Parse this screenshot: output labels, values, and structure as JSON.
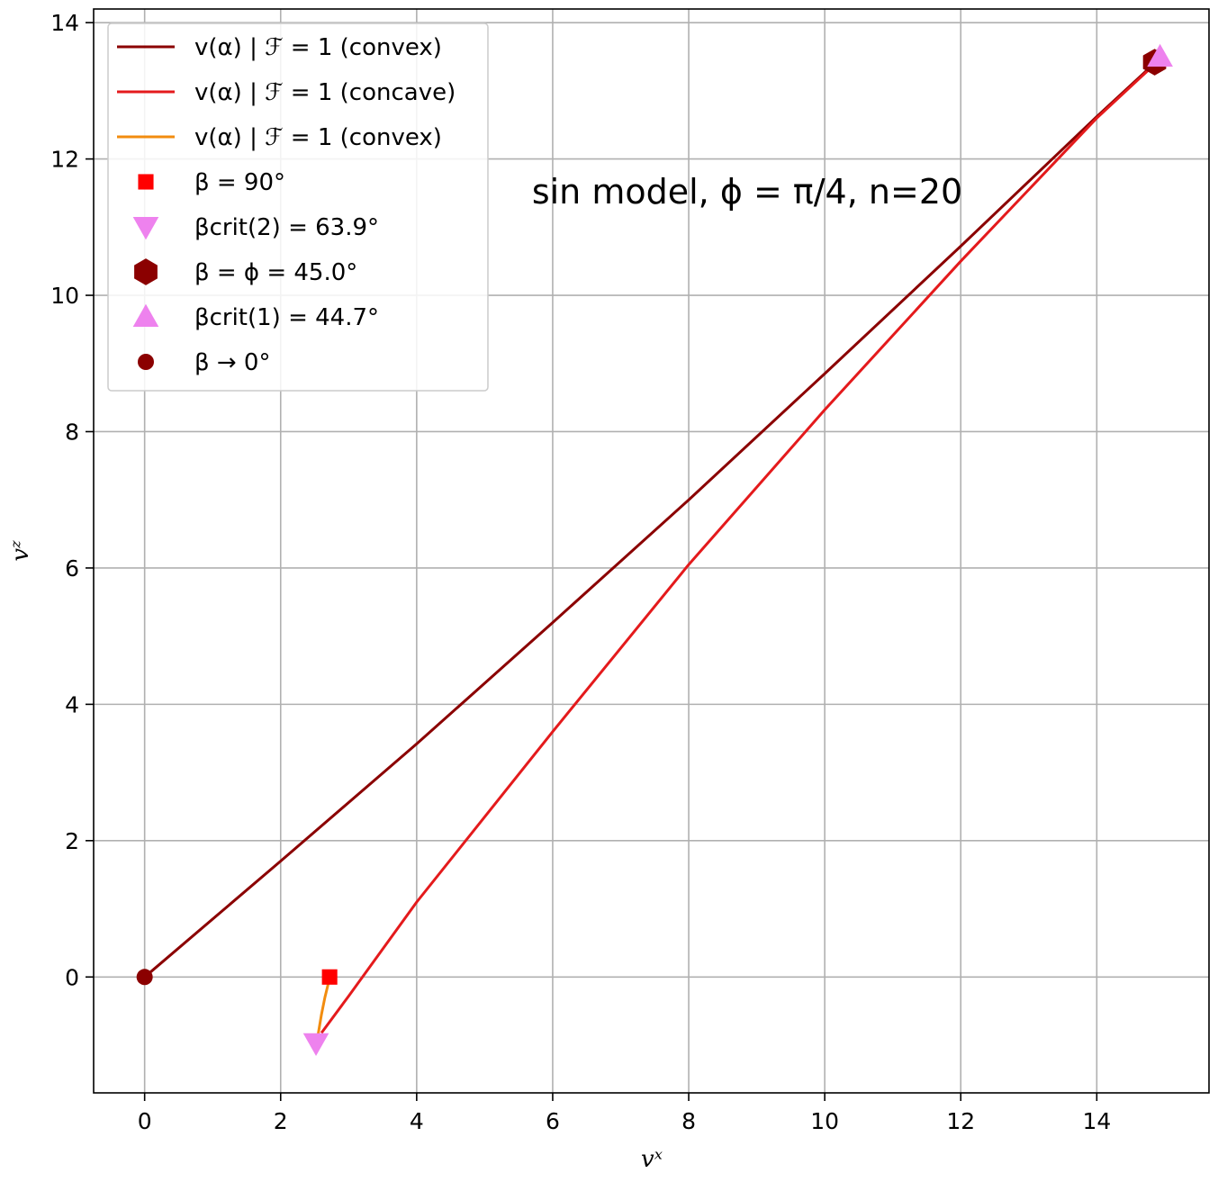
{
  "chart_data": {
    "type": "line",
    "annotation": "sin model, ϕ = π/4, n=20",
    "xlabel": "vˣ",
    "ylabel": "vᶻ",
    "xlim": [
      -0.75,
      15.65
    ],
    "ylim": [
      -1.7,
      14.2
    ],
    "xticks": [
      0,
      2,
      4,
      6,
      8,
      10,
      12,
      14
    ],
    "yticks": [
      0,
      2,
      4,
      6,
      8,
      10,
      12,
      14
    ],
    "grid": true,
    "legend_position": "upper-left",
    "series": [
      {
        "name": "v(α) | ℱ = 1 (convex)",
        "kind": "line",
        "color": "#8b0000",
        "points": [
          [
            0,
            0
          ],
          [
            2,
            1.7
          ],
          [
            4,
            3.42
          ],
          [
            6,
            5.2
          ],
          [
            8,
            7.0
          ],
          [
            10,
            8.85
          ],
          [
            12,
            10.72
          ],
          [
            14,
            12.62
          ],
          [
            14.9,
            13.45
          ]
        ]
      },
      {
        "name": "v(α) | ℱ = 1 (concave)",
        "kind": "line",
        "color": "#e41a1c",
        "points": [
          [
            2.6,
            -0.82
          ],
          [
            3.0,
            -0.28
          ],
          [
            4.0,
            1.1
          ],
          [
            6.0,
            3.6
          ],
          [
            8.0,
            6.05
          ],
          [
            10.0,
            8.32
          ],
          [
            12.0,
            10.5
          ],
          [
            14.0,
            12.6
          ],
          [
            14.95,
            13.48
          ]
        ]
      },
      {
        "name": "v(α) | ℱ = 1 (convex)",
        "kind": "line",
        "color": "#f28c0f",
        "points": [
          [
            2.55,
            -0.85
          ],
          [
            2.6,
            -0.55
          ],
          [
            2.65,
            -0.3
          ],
          [
            2.7,
            -0.1
          ],
          [
            2.72,
            0
          ]
        ]
      },
      {
        "name": "β = 90°",
        "kind": "marker",
        "marker": "square",
        "color": "#ff0000",
        "points": [
          [
            2.72,
            0
          ]
        ]
      },
      {
        "name": "βcrit(2) = 63.9°",
        "kind": "marker",
        "marker": "triangle-down",
        "color": "#ee82ee",
        "points": [
          [
            2.52,
            -0.97
          ]
        ]
      },
      {
        "name": "β = ϕ = 45.0°",
        "kind": "marker",
        "marker": "hexagon",
        "color": "#8b0000",
        "points": [
          [
            14.85,
            13.42
          ]
        ]
      },
      {
        "name": "βcrit(1) = 44.7°",
        "kind": "marker",
        "marker": "triangle-up",
        "color": "#ee82ee",
        "points": [
          [
            14.93,
            13.5
          ]
        ]
      },
      {
        "name": "β → 0°",
        "kind": "marker",
        "marker": "circle",
        "color": "#8b0000",
        "points": [
          [
            0,
            0
          ]
        ]
      }
    ]
  }
}
